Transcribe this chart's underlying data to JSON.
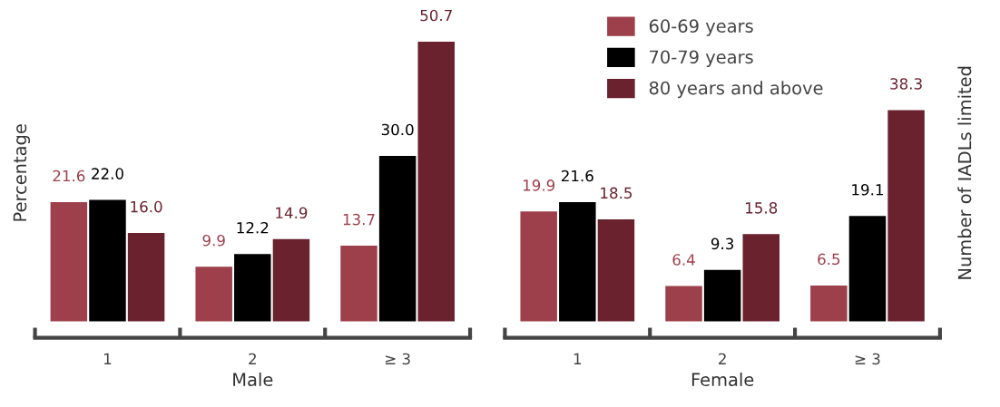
{
  "chart_data": [
    {
      "type": "bar",
      "xlabel": "Male",
      "ylabel": "Percentage",
      "categories": [
        "1",
        "2",
        "≥ 3"
      ],
      "series": [
        {
          "color": "#9e404b",
          "values": [
            21.6,
            9.9,
            13.7
          ],
          "value_labels": [
            "21.6",
            "9.9",
            "13.7"
          ]
        },
        {
          "color": "#000000",
          "values": [
            22.0,
            12.2,
            30.0
          ],
          "value_labels": [
            "22.0",
            "12.2",
            "30.0"
          ]
        },
        {
          "color": "#6a222e",
          "values": [
            16.0,
            14.9,
            50.7
          ],
          "value_labels": [
            "16.0",
            "14.9",
            "50.7"
          ]
        }
      ]
    },
    {
      "type": "bar",
      "xlabel": "Female",
      "y2label": "Number of IADLs limited",
      "categories": [
        "1",
        "2",
        "≥ 3"
      ],
      "legend": "top left",
      "series": [
        {
          "name": "60-69 years",
          "color": "#9e404b",
          "values": [
            19.9,
            6.4,
            6.5
          ],
          "value_labels": [
            "19.9",
            "6.4",
            "6.5"
          ]
        },
        {
          "name": "70-79 years",
          "color": "#000000",
          "values": [
            21.6,
            9.3,
            19.1
          ],
          "value_labels": [
            "21.6",
            "9.3",
            "19.1"
          ]
        },
        {
          "name": "80 years and above",
          "color": "#6a222e",
          "values": [
            18.5,
            15.8,
            38.3
          ],
          "value_labels": [
            "18.5",
            "15.8",
            "38.3"
          ]
        }
      ]
    }
  ]
}
